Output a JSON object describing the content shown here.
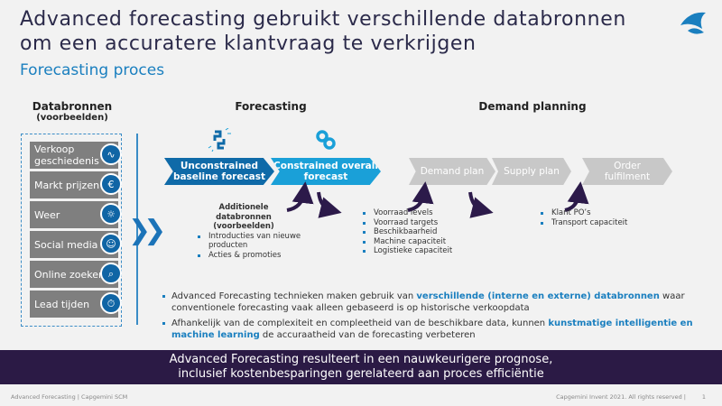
{
  "title": "Advanced forecasting gebruikt verschillende databronnen om een accuratere klantvraag te verkrijgen",
  "subtitle": "Forecasting proces",
  "columns": {
    "databronnen": "Databronnen",
    "databronnen_sub": "(voorbeelden)",
    "forecasting": "Forecasting",
    "demand_planning": "Demand planning"
  },
  "sources": [
    {
      "label": "Verkoop geschiedenis",
      "icon": "chart-curve-icon"
    },
    {
      "label": "Markt prijzen",
      "icon": "euro-pie-icon"
    },
    {
      "label": "Weer",
      "icon": "weather-icon"
    },
    {
      "label": "Social media",
      "icon": "people-network-icon"
    },
    {
      "label": "Online zoeken",
      "icon": "search-laptop-icon"
    },
    {
      "label": "Lead tijden",
      "icon": "stopwatch-icon"
    }
  ],
  "process": [
    {
      "label": "Unconstrained baseline forecast",
      "color": "#0f6aa8"
    },
    {
      "label": "Constrained overall forecast",
      "color": "#1aa0d8"
    },
    {
      "label": "Demand plan",
      "color": "#c8c8c8"
    },
    {
      "label": "Supply plan",
      "color": "#c8c8c8"
    },
    {
      "label": "Order fulfilment",
      "color": "#c8c8c8"
    }
  ],
  "additional": {
    "title": "Additionele databronnen",
    "subtitle": "(voorbeelden)",
    "items": [
      "Introducties van nieuwe producten",
      "Acties & promoties"
    ]
  },
  "constraints": [
    "Voorraad levels",
    "Voorraad targets",
    "Beschikbaarheid",
    "Machine capaciteit",
    "Logistieke capaciteit"
  ],
  "supply_inputs": [
    "Klant PO’s",
    "Transport capaciteit"
  ],
  "bullets": [
    {
      "pre": "Advanced Forecasting technieken maken gebruik van ",
      "hl": "verschillende (interne en externe) databronnen",
      "post": " waar conventionele forecasting vaak alleen gebaseerd is op historische verkoopdata"
    },
    {
      "pre": "Afhankelijk van de complexiteit en compleetheid van de beschikbare data, kunnen ",
      "hl": "kunstmatige intelligentie en machine learning",
      "post": " de accuraatheid van de forecasting verbeteren"
    }
  ],
  "banner": {
    "line1": "Advanced Forecasting resulteert in een nauwkeurigere prognose,",
    "line2": "inclusief kostenbesparingen gerelateerd aan proces efficiëntie"
  },
  "footer": {
    "left": "Advanced Forecasting | Capgemini  SCM",
    "right": "Capgemini  Invent 2021.  All rights reserved |",
    "page": "1"
  },
  "colors": {
    "accent": "#1a7fbf",
    "dark": "#2b1a45"
  }
}
